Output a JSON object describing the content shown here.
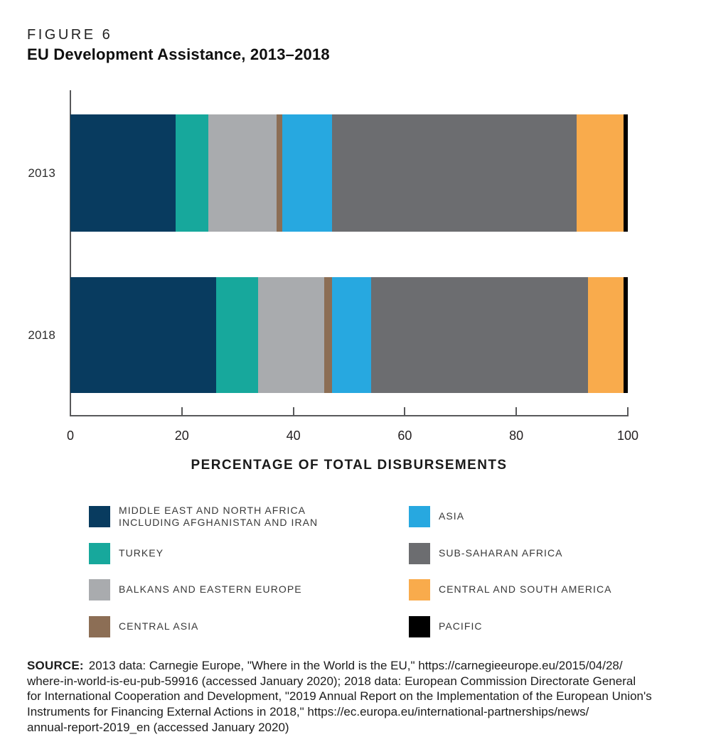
{
  "figure": {
    "label": "FIGURE 6",
    "title": "EU Development Assistance, 2013–2018"
  },
  "chart_data": {
    "type": "bar",
    "subtype": "horizontal-stacked",
    "categories": [
      "2013",
      "2018"
    ],
    "series": [
      {
        "name": "Middle East and North Africa including Afghanistan and Iran",
        "legend_lines": [
          "MIDDLE EAST AND NORTH AFRICA",
          "INCLUDING AFGHANISTAN AND IRAN"
        ],
        "color": "#083b5f",
        "values": [
          18.9,
          26.2
        ]
      },
      {
        "name": "Turkey",
        "legend_lines": [
          "TURKEY"
        ],
        "color": "#17a89c",
        "values": [
          5.9,
          7.5
        ]
      },
      {
        "name": "Balkans and Eastern Europe",
        "legend_lines": [
          "BALKANS AND EASTERN EUROPE"
        ],
        "color": "#a9abae",
        "values": [
          12.2,
          11.9
        ]
      },
      {
        "name": "Central Asia",
        "legend_lines": [
          "CENTRAL ASIA"
        ],
        "color": "#8c6e55",
        "values": [
          1.0,
          1.3
        ]
      },
      {
        "name": "Asia",
        "legend_lines": [
          "ASIA"
        ],
        "color": "#27a8e0",
        "values": [
          8.9,
          7.0
        ]
      },
      {
        "name": "Sub-Saharan Africa",
        "legend_lines": [
          "SUB-SAHARAN AFRICA"
        ],
        "color": "#6c6d70",
        "values": [
          43.9,
          38.9
        ]
      },
      {
        "name": "Central and South America",
        "legend_lines": [
          "CENTRAL AND SOUTH AMERICA"
        ],
        "color": "#f9ab4c",
        "values": [
          8.4,
          6.4
        ]
      },
      {
        "name": "Pacific",
        "legend_lines": [
          "PACIFIC"
        ],
        "color": "#000000",
        "values": [
          0.8,
          0.8
        ]
      }
    ],
    "xlabel": "PERCENTAGE OF TOTAL DISBURSEMENTS",
    "xlim": [
      0,
      100
    ],
    "xticks": [
      0,
      20,
      40,
      60,
      80,
      100
    ],
    "grid": false,
    "legend_position": "bottom-two-columns"
  },
  "source": {
    "label": "SOURCE:",
    "lines": [
      "2013 data: Carnegie Europe, \"Where in the World is the EU,\" https://carnegieeurope.eu/2015/04/28/",
      "where-in-world-is-eu-pub-59916 (accessed January 2020); 2018 data: European Commission Directorate General",
      "for International Cooperation and Development, \"2019 Annual Report on the Implementation of the European Union's",
      "Instruments for Financing External Actions in 2018,\" https://ec.europa.eu/international-partnerships/news/",
      "annual-report-2019_en (accessed January 2020)"
    ]
  }
}
